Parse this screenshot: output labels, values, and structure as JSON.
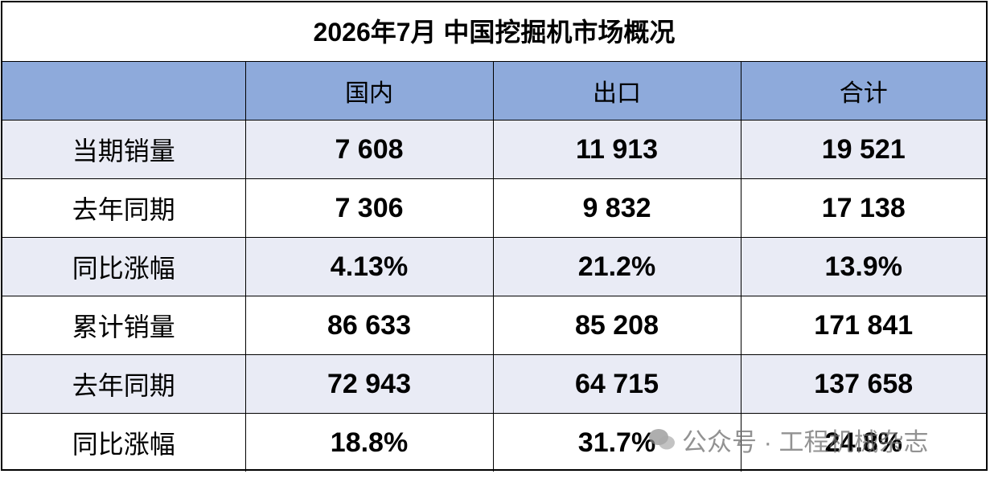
{
  "title": "2026年7月 中国挖掘机市场概况",
  "table": {
    "header": [
      "国内",
      "出口",
      "合计"
    ],
    "rows": [
      [
        "当期销量",
        "7 608",
        "11 913",
        "19 521"
      ],
      [
        "去年同期",
        "7 306",
        "9 832",
        "17 138"
      ],
      [
        "同比涨幅",
        "4.13%",
        "21.2%",
        "13.9%"
      ],
      [
        "累计销量",
        "86 633",
        "85 208",
        "171 841"
      ],
      [
        "去年同期",
        "72 943",
        "64 715",
        "137 658"
      ],
      [
        "同比涨幅",
        "18.8%",
        "31.7%",
        "24.8%"
      ]
    ]
  },
  "watermark": "公众号 · 工程机械杂志"
}
